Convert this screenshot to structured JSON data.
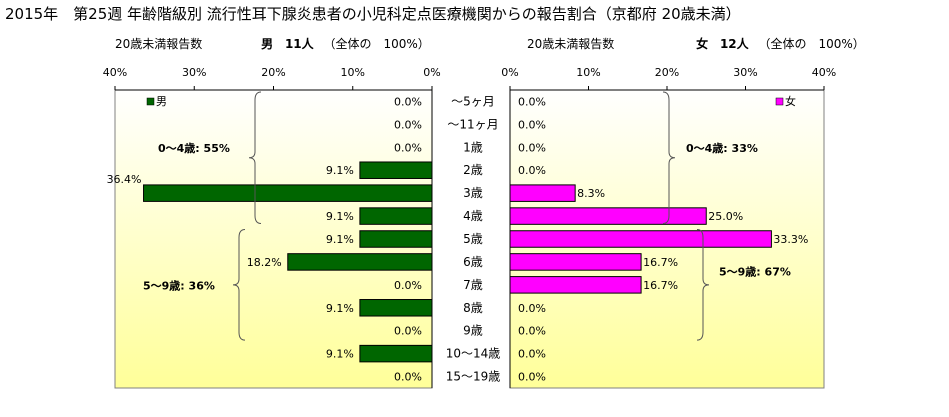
{
  "title": "2015年　第25週 年齢階級別 流行性耳下腺炎患者の小児科定点医療機関からの報告割合（京都府 20歳未満）",
  "left_header": {
    "label": "20歳未満報告数",
    "sex": "男",
    "count": "11人",
    "total": "（全体の　100%）"
  },
  "right_header": {
    "label": "20歳未満報告数",
    "sex": "女",
    "count": "12人",
    "total": "（全体の　100%）"
  },
  "colors": {
    "male": "#006600",
    "female": "#ff00ff",
    "bg_top": "#ffffff",
    "bg_bottom": "#ffff99"
  },
  "chart_data": {
    "type": "bar",
    "orientation": "horizontal-butterfly",
    "categories": [
      "～5ヶ月",
      "～11ヶ月",
      "1歳",
      "2歳",
      "3歳",
      "4歳",
      "5歳",
      "6歳",
      "7歳",
      "8歳",
      "9歳",
      "10～14歳",
      "15～19歳"
    ],
    "series": [
      {
        "name": "男",
        "values": [
          0.0,
          0.0,
          0.0,
          9.1,
          36.4,
          9.1,
          9.1,
          18.2,
          0.0,
          9.1,
          0.0,
          9.1,
          0.0
        ],
        "labels": [
          "0.0%",
          "0.0%",
          "0.0%",
          "9.1%",
          "36.4%",
          "9.1%",
          "9.1%",
          "18.2%",
          "0.0%",
          "9.1%",
          "0.0%",
          "9.1%",
          "0.0%"
        ]
      },
      {
        "name": "女",
        "values": [
          0.0,
          0.0,
          0.0,
          0.0,
          8.3,
          25.0,
          33.3,
          16.7,
          16.7,
          0.0,
          0.0,
          0.0,
          0.0
        ],
        "labels": [
          "0.0%",
          "0.0%",
          "0.0%",
          "0.0%",
          "8.3%",
          "25.0%",
          "33.3%",
          "16.7%",
          "16.7%",
          "0.0%",
          "0.0%",
          "0.0%",
          "0.0%"
        ]
      }
    ],
    "xlim": [
      0,
      40
    ],
    "ticks": [
      "40%",
      "30%",
      "20%",
      "10%",
      "0%"
    ],
    "ticks_right": [
      "0%",
      "10%",
      "20%",
      "30%",
      "40%"
    ],
    "annotations": {
      "male_0_4": "0～4歳: 55%",
      "male_5_9": "5～9歳: 36%",
      "female_0_4": "0～4歳: 33%",
      "female_5_9": "5～9歳: 67%"
    }
  }
}
